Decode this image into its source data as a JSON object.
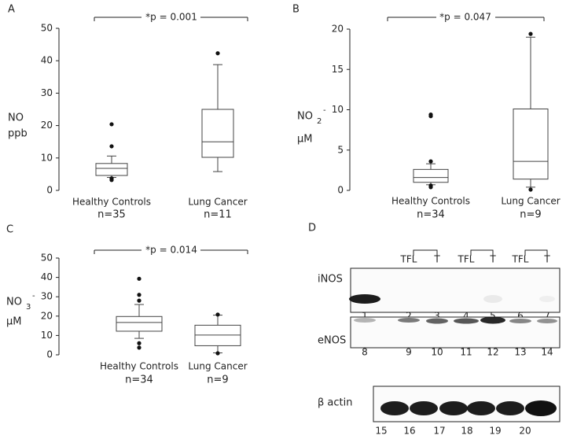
{
  "chart_data": [
    {
      "type": "box",
      "title": "A",
      "annotation": "*p = 0.001",
      "ylabel": [
        "NO",
        "ppb"
      ],
      "categories": [
        "Healthy Controls",
        "Lung Cancer"
      ],
      "n_labels": [
        "n=35",
        "n=11"
      ],
      "boxes": [
        {
          "whisker_low": 4.0,
          "q1": 4.6,
          "median": 6.8,
          "q3": 8.3,
          "whisker_high": 10.6,
          "outliers": [
            20.4,
            13.6,
            3.7,
            3.2
          ]
        },
        {
          "whisker_low": 5.8,
          "q1": 10.2,
          "median": 15,
          "q3": 25,
          "whisker_high": 38.8,
          "outliers": [
            42.3
          ]
        }
      ],
      "ylim": [
        0,
        50
      ],
      "yticks": [
        0,
        10,
        20,
        30,
        40,
        50
      ]
    },
    {
      "type": "box",
      "title": "B",
      "annotation": "*p = 0.047",
      "ylabel": [
        "NO",
        "2",
        "-",
        "µM"
      ],
      "categories": [
        "Healthy Controls",
        "Lung Cancer"
      ],
      "n_labels": [
        "n=34",
        "n=9"
      ],
      "boxes": [
        {
          "whisker_low": 0.7,
          "q1": 1.0,
          "median": 1.6,
          "q3": 2.6,
          "whisker_high": 3.3,
          "outliers": [
            9.4,
            9.2,
            3.6,
            0.6,
            0.4
          ]
        },
        {
          "whisker_low": 0.4,
          "q1": 1.4,
          "median": 3.6,
          "q3": 10.1,
          "whisker_high": 19.0,
          "outliers": [
            19.4,
            0.1
          ]
        }
      ],
      "ylim": [
        0,
        20
      ],
      "yticks": [
        0,
        5,
        10,
        15,
        20
      ]
    },
    {
      "type": "box",
      "title": "C",
      "annotation": "*p = 0.014",
      "ylabel": [
        "NO",
        "3",
        "-",
        "µM"
      ],
      "categories": [
        "Healthy Controls",
        "Lung Cancer"
      ],
      "n_labels": [
        "n=34",
        "n=9"
      ],
      "boxes": [
        {
          "whisker_low": 8.5,
          "q1": 12.2,
          "median": 16.7,
          "q3": 19.8,
          "whisker_high": 26,
          "outliers": [
            39.3,
            31,
            28,
            6,
            3.7
          ]
        },
        {
          "whisker_low": 1.0,
          "q1": 4.7,
          "median": 10.2,
          "q3": 15.3,
          "whisker_high": 20.5,
          "outliers": [
            20.8,
            0.8
          ]
        }
      ],
      "ylim": [
        0,
        50
      ],
      "yticks": [
        0,
        10,
        20,
        30,
        40,
        50
      ]
    }
  ],
  "blot": {
    "title": "D",
    "headers": [
      "TFL",
      "T",
      "TFL",
      "T",
      "TFL",
      "T"
    ],
    "rows": [
      {
        "label": "iNOS",
        "lanes": [
          "1",
          "2",
          "3",
          "4",
          "5",
          "6",
          "7"
        ]
      },
      {
        "label": "eNOS",
        "lanes": [
          "8",
          "9",
          "10",
          "11",
          "12",
          "13",
          "14"
        ]
      },
      {
        "label": "β actin",
        "lanes": [
          "15",
          "16",
          "17",
          "18",
          "19",
          "20"
        ]
      }
    ]
  }
}
